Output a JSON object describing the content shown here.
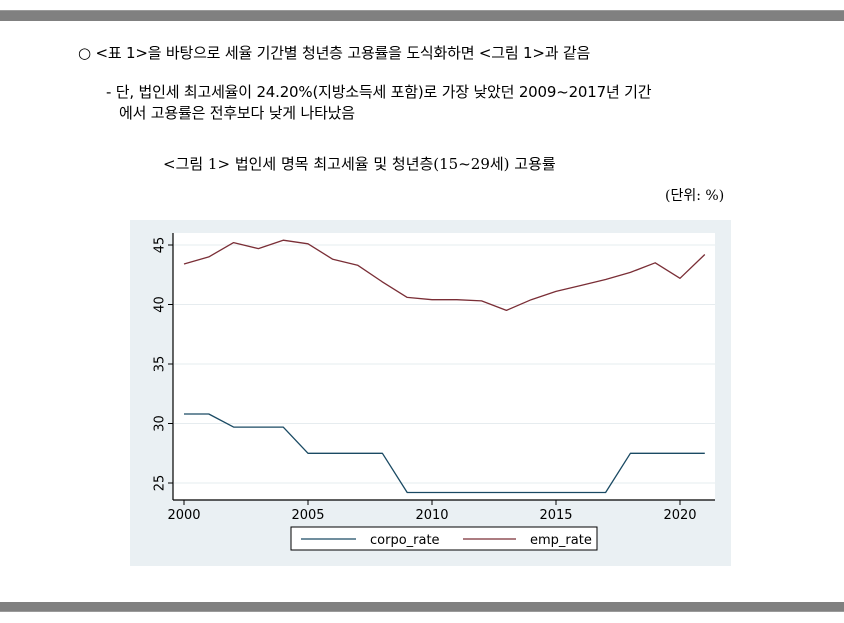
{
  "document": {
    "bullet_line": "○ <표 1>을 바탕으로 세율 기간별 청년층 고용률을 도식화하면 <그림 1>과 같음",
    "sub_line_1": "- 단, 법인세 최고세율이 24.20%(지방소득세 포함)로 가장 낮았던 2009~2017년 기간",
    "sub_line_2": "에서 고용률은 전후보다 낮게 나타났음",
    "figure_title": "<그림 1> 법인세 명목 최고세율 및 청년층(15~29세) 고용률",
    "unit_label": "(단위: %)"
  },
  "colors": {
    "corpo_rate": "#1a4a63",
    "emp_rate": "#7a2e36",
    "frame_bg": "#eaf0f3",
    "gridline": "#e6ecef",
    "page_bar": "#808080"
  },
  "chart_data": {
    "type": "line",
    "title": "<그림 1> 법인세 명목 최고세율 및 청년층(15~29세) 고용률",
    "xlabel": "",
    "ylabel": "",
    "unit": "%",
    "x": [
      2000,
      2001,
      2002,
      2003,
      2004,
      2005,
      2006,
      2007,
      2008,
      2009,
      2010,
      2011,
      2012,
      2013,
      2014,
      2015,
      2016,
      2017,
      2018,
      2019,
      2020,
      2021
    ],
    "series": [
      {
        "name": "corpo_rate",
        "values": [
          30.8,
          30.8,
          29.7,
          29.7,
          29.7,
          27.5,
          27.5,
          27.5,
          27.5,
          24.2,
          24.2,
          24.2,
          24.2,
          24.2,
          24.2,
          24.2,
          24.2,
          24.2,
          27.5,
          27.5,
          27.5,
          27.5
        ]
      },
      {
        "name": "emp_rate",
        "values": [
          43.4,
          44.0,
          45.2,
          44.7,
          45.4,
          45.1,
          43.8,
          43.3,
          41.9,
          40.6,
          40.4,
          40.4,
          40.3,
          39.5,
          40.4,
          41.1,
          41.6,
          42.1,
          42.7,
          43.5,
          42.2,
          44.2
        ]
      }
    ],
    "x_ticks": [
      "2000",
      "2005",
      "2010",
      "2015",
      "2020"
    ],
    "y_ticks": [
      "25",
      "30",
      "35",
      "40",
      "45"
    ],
    "xlim": [
      2000,
      2021
    ],
    "ylim": [
      24,
      46
    ],
    "grid": true,
    "legend": {
      "position": "bottom",
      "entries": [
        "corpo_rate",
        "emp_rate"
      ]
    }
  }
}
